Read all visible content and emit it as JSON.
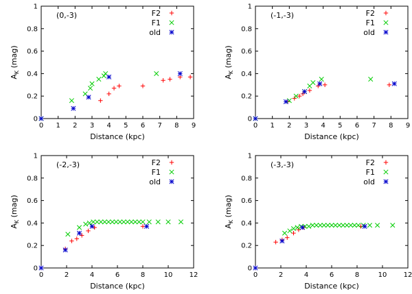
{
  "colors": {
    "F2": "#ff0000",
    "F1": "#00cc00",
    "old": "#0000cc"
  },
  "chart_data": [
    {
      "type": "scatter",
      "title": "(0,-3)",
      "xlabel": "Distance (kpc)",
      "ylabel_main": "A",
      "ylabel_sub": "K",
      "ylabel_unit": "(mag)",
      "xlim": [
        0,
        9
      ],
      "ylim": [
        0,
        1
      ],
      "xticks": [
        "0",
        "1",
        "2",
        "3",
        "4",
        "5",
        "6",
        "7",
        "8",
        "9"
      ],
      "yticks": [
        "0",
        "0.2",
        "0.4",
        "0.6",
        "0.8",
        "1"
      ],
      "legend_position": "top-right",
      "series": [
        {
          "name": "F2",
          "marker": "plus",
          "points": [
            [
              0,
              0
            ],
            [
              3.5,
              0.16
            ],
            [
              4.0,
              0.22
            ],
            [
              4.3,
              0.27
            ],
            [
              4.6,
              0.29
            ],
            [
              6.0,
              0.29
            ],
            [
              7.2,
              0.34
            ],
            [
              7.6,
              0.35
            ],
            [
              8.2,
              0.37
            ],
            [
              8.8,
              0.37
            ]
          ]
        },
        {
          "name": "F1",
          "marker": "x",
          "points": [
            [
              0,
              0
            ],
            [
              1.8,
              0.16
            ],
            [
              2.6,
              0.22
            ],
            [
              2.9,
              0.27
            ],
            [
              3.0,
              0.31
            ],
            [
              3.4,
              0.35
            ],
            [
              3.7,
              0.38
            ],
            [
              3.8,
              0.4
            ],
            [
              6.8,
              0.4
            ]
          ]
        },
        {
          "name": "old",
          "marker": "star",
          "points": [
            [
              0,
              0
            ],
            [
              1.9,
              0.09
            ],
            [
              2.8,
              0.19
            ],
            [
              4.0,
              0.37
            ],
            [
              8.2,
              0.4
            ]
          ]
        }
      ]
    },
    {
      "type": "scatter",
      "title": "(-1,-3)",
      "xlabel": "Distance (kpc)",
      "ylabel_main": "A",
      "ylabel_sub": "K",
      "ylabel_unit": "(mag)",
      "xlim": [
        0,
        9
      ],
      "ylim": [
        0,
        1
      ],
      "xticks": [
        "0",
        "1",
        "2",
        "3",
        "4",
        "5",
        "6",
        "7",
        "8",
        "9"
      ],
      "yticks": [
        "0",
        "0.2",
        "0.4",
        "0.6",
        "0.8",
        "1"
      ],
      "legend_position": "top-right",
      "series": [
        {
          "name": "F2",
          "marker": "plus",
          "points": [
            [
              0,
              0
            ],
            [
              1.9,
              0.15
            ],
            [
              2.3,
              0.18
            ],
            [
              2.6,
              0.2
            ],
            [
              2.8,
              0.22
            ],
            [
              3.2,
              0.25
            ],
            [
              3.7,
              0.29
            ],
            [
              4.1,
              0.3
            ],
            [
              7.9,
              0.3
            ]
          ]
        },
        {
          "name": "F1",
          "marker": "x",
          "points": [
            [
              0,
              0
            ],
            [
              2.0,
              0.16
            ],
            [
              2.4,
              0.2
            ],
            [
              2.9,
              0.24
            ],
            [
              3.2,
              0.29
            ],
            [
              3.4,
              0.32
            ],
            [
              3.9,
              0.35
            ],
            [
              6.8,
              0.35
            ]
          ]
        },
        {
          "name": "old",
          "marker": "star",
          "points": [
            [
              0,
              0
            ],
            [
              1.8,
              0.15
            ],
            [
              2.9,
              0.24
            ],
            [
              3.8,
              0.31
            ],
            [
              8.2,
              0.31
            ]
          ]
        }
      ]
    },
    {
      "type": "scatter",
      "title": "(-2,-3)",
      "xlabel": "Distance (kpc)",
      "ylabel_main": "A",
      "ylabel_sub": "K",
      "ylabel_unit": "(mag)",
      "xlim": [
        0,
        12
      ],
      "ylim": [
        0,
        1
      ],
      "xticks": [
        "0",
        "2",
        "4",
        "6",
        "8",
        "10",
        "12"
      ],
      "yticks": [
        "0",
        "0.2",
        "0.4",
        "0.6",
        "0.8",
        "1"
      ],
      "legend_position": "top-right",
      "series": [
        {
          "name": "F2",
          "marker": "plus",
          "points": [
            [
              0,
              0
            ],
            [
              1.9,
              0.17
            ],
            [
              2.4,
              0.24
            ],
            [
              2.8,
              0.26
            ],
            [
              3.2,
              0.29
            ],
            [
              3.7,
              0.33
            ],
            [
              4.2,
              0.36
            ],
            [
              8.0,
              0.37
            ]
          ]
        },
        {
          "name": "F1",
          "marker": "x",
          "points": [
            [
              2.1,
              0.3
            ],
            [
              3.0,
              0.36
            ],
            [
              3.5,
              0.39
            ],
            [
              3.8,
              0.4
            ],
            [
              4.1,
              0.41
            ],
            [
              4.4,
              0.41
            ],
            [
              4.7,
              0.41
            ],
            [
              5.0,
              0.41
            ],
            [
              5.3,
              0.41
            ],
            [
              5.6,
              0.41
            ],
            [
              5.9,
              0.41
            ],
            [
              6.2,
              0.41
            ],
            [
              6.5,
              0.41
            ],
            [
              6.8,
              0.41
            ],
            [
              7.1,
              0.41
            ],
            [
              7.4,
              0.41
            ],
            [
              7.7,
              0.41
            ],
            [
              8.0,
              0.41
            ],
            [
              8.5,
              0.41
            ],
            [
              9.2,
              0.41
            ],
            [
              10.0,
              0.41
            ],
            [
              11.0,
              0.41
            ]
          ]
        },
        {
          "name": "old",
          "marker": "star",
          "points": [
            [
              0,
              0
            ],
            [
              1.9,
              0.16
            ],
            [
              3.0,
              0.31
            ],
            [
              4.0,
              0.37
            ],
            [
              8.3,
              0.37
            ]
          ]
        }
      ]
    },
    {
      "type": "scatter",
      "title": "(-3,-3)",
      "xlabel": "Distance (kpc)",
      "ylabel_main": "A",
      "ylabel_sub": "K",
      "ylabel_unit": "(mag)",
      "xlim": [
        0,
        12
      ],
      "ylim": [
        0,
        1
      ],
      "xticks": [
        "0",
        "2",
        "4",
        "6",
        "8",
        "10",
        "12"
      ],
      "yticks": [
        "0",
        "0.2",
        "0.4",
        "0.6",
        "0.8",
        "1"
      ],
      "legend_position": "top-right",
      "series": [
        {
          "name": "F2",
          "marker": "plus",
          "points": [
            [
              0,
              0
            ],
            [
              1.6,
              0.23
            ],
            [
              2.1,
              0.25
            ],
            [
              2.5,
              0.27
            ],
            [
              3.0,
              0.31
            ],
            [
              3.4,
              0.34
            ],
            [
              3.8,
              0.36
            ],
            [
              8.3,
              0.37
            ]
          ]
        },
        {
          "name": "F1",
          "marker": "x",
          "points": [
            [
              2.3,
              0.31
            ],
            [
              2.7,
              0.33
            ],
            [
              3.0,
              0.35
            ],
            [
              3.3,
              0.36
            ],
            [
              3.6,
              0.37
            ],
            [
              3.9,
              0.37
            ],
            [
              4.2,
              0.37
            ],
            [
              4.5,
              0.38
            ],
            [
              4.8,
              0.38
            ],
            [
              5.1,
              0.38
            ],
            [
              5.4,
              0.38
            ],
            [
              5.7,
              0.38
            ],
            [
              6.0,
              0.38
            ],
            [
              6.3,
              0.38
            ],
            [
              6.6,
              0.38
            ],
            [
              6.9,
              0.38
            ],
            [
              7.2,
              0.38
            ],
            [
              7.5,
              0.38
            ],
            [
              7.8,
              0.38
            ],
            [
              8.1,
              0.38
            ],
            [
              8.5,
              0.38
            ],
            [
              9.0,
              0.38
            ],
            [
              9.6,
              0.38
            ],
            [
              10.8,
              0.38
            ]
          ]
        },
        {
          "name": "old",
          "marker": "star",
          "points": [
            [
              0,
              0
            ],
            [
              2.1,
              0.24
            ],
            [
              3.7,
              0.36
            ],
            [
              8.6,
              0.37
            ]
          ]
        }
      ]
    }
  ]
}
